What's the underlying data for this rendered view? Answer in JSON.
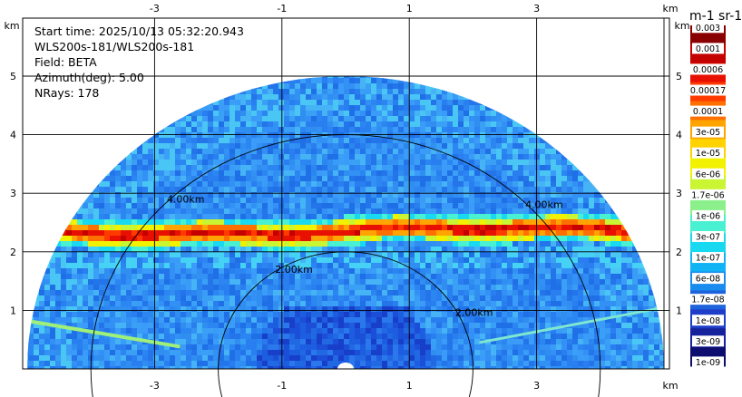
{
  "plot": {
    "info": {
      "start_time": "Start time: 2025/10/13 05:32:20.943",
      "instrument": "WLS200s-181/WLS200s-181",
      "field": "Field: BETA",
      "azimuth": "Azimuth(deg): 5.00",
      "nrays": "NRays: 178"
    },
    "x_ticks": [
      "-3",
      "-1",
      "1",
      "3"
    ],
    "y_ticks": [
      "5",
      "4",
      "3",
      "2",
      "1"
    ],
    "x_unit": "km",
    "y_unit": "km",
    "range_rings": [
      "4.00km",
      "2.00km"
    ],
    "x_range_km": [
      -5.0,
      5.0
    ],
    "y_range_km": [
      0.0,
      5.9
    ],
    "max_range_km": 5.0,
    "layer_height_km": 2.35
  },
  "colorbar": {
    "title": "m-1 sr-1",
    "labels": [
      "0.003",
      "0.001",
      "0.0006",
      "0.00017",
      "0.0001",
      "3e-05",
      "1e-05",
      "6e-06",
      "1.7e-06",
      "1e-06",
      "3e-07",
      "1e-07",
      "6e-08",
      "1.7e-08",
      "1e-08",
      "3e-09",
      "1e-09"
    ],
    "colors": [
      "#8a0000",
      "#c40000",
      "#e81000",
      "#ff3a00",
      "#ff7000",
      "#ffa400",
      "#ffd200",
      "#f2f200",
      "#c9f532",
      "#8bf08b",
      "#4af0d2",
      "#19d9f0",
      "#10b4f5",
      "#1a8cf0",
      "#1e63dc",
      "#1e3dc8",
      "#16229b",
      "#0d0d70"
    ]
  }
}
